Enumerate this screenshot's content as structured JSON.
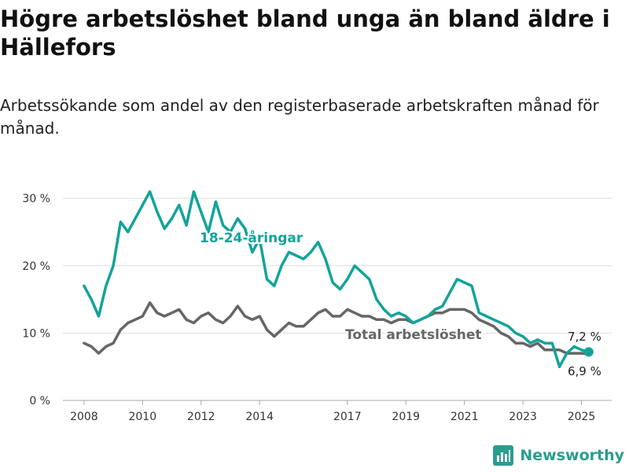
{
  "title": "Högre arbetslöshet bland unga än bland äldre i Hällefors",
  "subtitle": "Arbetssökande som andel av den registerbaserade arbetskraften månad för månad.",
  "brand": "Newsworthy",
  "colors": {
    "youth": "#13a39a",
    "total": "#666666",
    "grid": "#dddddd",
    "brand": "#2a9d8f"
  },
  "chart_data": {
    "type": "line",
    "title": "Högre arbetslöshet bland unga än bland äldre i Hällefors",
    "xlabel": "",
    "ylabel": "",
    "ylim": [
      0,
      32
    ],
    "y_ticks": [
      0,
      10,
      20,
      30
    ],
    "y_tick_labels": [
      "0 %",
      "10 %",
      "20 %",
      "30 %"
    ],
    "x_ticks": [
      "2008",
      "2010",
      "2012",
      "2014",
      "2017",
      "2019",
      "2021",
      "2023",
      "2025"
    ],
    "grid": "horizontal",
    "legend": "direct labels",
    "end_labels": [
      "7,2 %",
      "6,9 %"
    ],
    "series": [
      {
        "name": "18-24-åringar",
        "x": [
          "2008-01",
          "2008-04",
          "2008-07",
          "2008-10",
          "2009-01",
          "2009-04",
          "2009-07",
          "2009-10",
          "2010-01",
          "2010-04",
          "2010-07",
          "2010-10",
          "2011-01",
          "2011-04",
          "2011-07",
          "2011-10",
          "2012-01",
          "2012-04",
          "2012-07",
          "2012-10",
          "2013-01",
          "2013-04",
          "2013-07",
          "2013-10",
          "2014-01",
          "2014-04",
          "2014-07",
          "2014-10",
          "2015-01",
          "2015-04",
          "2015-07",
          "2015-10",
          "2016-01",
          "2016-04",
          "2016-07",
          "2016-10",
          "2017-01",
          "2017-04",
          "2017-07",
          "2017-10",
          "2018-01",
          "2018-04",
          "2018-07",
          "2018-10",
          "2019-01",
          "2019-04",
          "2019-07",
          "2019-10",
          "2020-01",
          "2020-04",
          "2020-07",
          "2020-10",
          "2021-01",
          "2021-04",
          "2021-07",
          "2021-10",
          "2022-01",
          "2022-04",
          "2022-07",
          "2022-10",
          "2023-01",
          "2023-04",
          "2023-07",
          "2023-10",
          "2024-01",
          "2024-04",
          "2024-07",
          "2024-10",
          "2025-01",
          "2025-04"
        ],
        "values": [
          17,
          15,
          12.5,
          17,
          20,
          26.5,
          25,
          27,
          29,
          31,
          28,
          25.5,
          27,
          29,
          26,
          31,
          28,
          25,
          29.5,
          26,
          25,
          27,
          25.5,
          22,
          24,
          18,
          17,
          20,
          22,
          21.5,
          21,
          22,
          23.5,
          21,
          17.5,
          16.5,
          18,
          20,
          19,
          18,
          15,
          13.5,
          12.5,
          13,
          12.5,
          11.5,
          12,
          12.5,
          13.5,
          14,
          16,
          18,
          17.5,
          17,
          13,
          12.5,
          12,
          11.5,
          11,
          10,
          9.5,
          8.5,
          9,
          8.5,
          8.5,
          5,
          7,
          8,
          7.5,
          7.2
        ]
      },
      {
        "name": "Total arbetslöshet",
        "x": [
          "2008-01",
          "2008-04",
          "2008-07",
          "2008-10",
          "2009-01",
          "2009-04",
          "2009-07",
          "2009-10",
          "2010-01",
          "2010-04",
          "2010-07",
          "2010-10",
          "2011-01",
          "2011-04",
          "2011-07",
          "2011-10",
          "2012-01",
          "2012-04",
          "2012-07",
          "2012-10",
          "2013-01",
          "2013-04",
          "2013-07",
          "2013-10",
          "2014-01",
          "2014-04",
          "2014-07",
          "2014-10",
          "2015-01",
          "2015-04",
          "2015-07",
          "2015-10",
          "2016-01",
          "2016-04",
          "2016-07",
          "2016-10",
          "2017-01",
          "2017-04",
          "2017-07",
          "2017-10",
          "2018-01",
          "2018-04",
          "2018-07",
          "2018-10",
          "2019-01",
          "2019-04",
          "2019-07",
          "2019-10",
          "2020-01",
          "2020-04",
          "2020-07",
          "2020-10",
          "2021-01",
          "2021-04",
          "2021-07",
          "2021-10",
          "2022-01",
          "2022-04",
          "2022-07",
          "2022-10",
          "2023-01",
          "2023-04",
          "2023-07",
          "2023-10",
          "2024-01",
          "2024-04",
          "2024-07",
          "2024-10",
          "2025-01",
          "2025-04"
        ],
        "values": [
          8.5,
          8,
          7,
          8,
          8.5,
          10.5,
          11.5,
          12,
          12.5,
          14.5,
          13,
          12.5,
          13,
          13.5,
          12,
          11.5,
          12.5,
          13,
          12,
          11.5,
          12.5,
          14,
          12.5,
          12,
          12.5,
          10.5,
          9.5,
          10.5,
          11.5,
          11,
          11,
          12,
          13,
          13.5,
          12.5,
          12.5,
          13.5,
          13,
          12.5,
          12.5,
          12,
          12,
          11.5,
          12,
          12,
          11.5,
          12,
          12.5,
          13,
          13,
          13.5,
          13.5,
          13.5,
          13,
          12,
          11.5,
          11,
          10,
          9.5,
          8.5,
          8.5,
          8,
          8.5,
          7.5,
          7.5,
          7.5,
          7,
          7,
          7,
          6.9
        ]
      }
    ]
  }
}
